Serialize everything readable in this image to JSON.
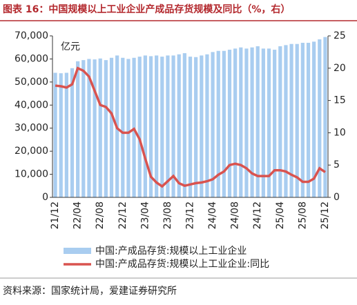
{
  "chart_data": {
    "type": "bar-line",
    "title": "图表 16：中国规模以上工业企业产成品存货规模及同比（%，右）",
    "unit_label": "亿元",
    "source": "资料来源：国家统计局，爱建证券研究所",
    "categories": [
      "21/12",
      null,
      null,
      null,
      "22/04",
      null,
      null,
      null,
      "22/08",
      null,
      null,
      null,
      "22/12",
      null,
      null,
      null,
      "23/04",
      null,
      null,
      null,
      "23/08",
      null,
      null,
      null,
      "23/12",
      null,
      null,
      null,
      "24/04",
      null,
      null,
      null,
      "24/08",
      null,
      null,
      null,
      "24/12",
      null,
      null,
      null,
      "25/04",
      null,
      null,
      null,
      "25/08",
      null,
      null,
      null,
      "25/12"
    ],
    "series": [
      {
        "name": "中国:产成品存货:规模以上工业企业",
        "color": "#a9cdf0",
        "values": [
          54000,
          53800,
          54000,
          56000,
          59000,
          59500,
          60000,
          59800,
          60200,
          59500,
          60500,
          61500,
          60500,
          60000,
          60500,
          61000,
          61500,
          61200,
          61500,
          61000,
          61500,
          61500,
          62000,
          62500,
          61000,
          60800,
          61500,
          62000,
          63000,
          63500,
          63500,
          64000,
          64500,
          65000,
          64500,
          65000,
          65500,
          64500,
          64500,
          64000,
          65500,
          66000,
          66500,
          66500,
          67000,
          67000,
          67500,
          68500,
          69500
        ]
      },
      {
        "name": "中国:产成品存货:规模以上工业企业:同比",
        "color": "#d9534f",
        "axis": "y2",
        "values": [
          17.3,
          17.2,
          17.0,
          17.5,
          20.0,
          19.6,
          18.7,
          16.5,
          14.3,
          14.0,
          13.0,
          10.7,
          10.0,
          10.0,
          10.6,
          9.0,
          6.0,
          3.2,
          2.3,
          1.7,
          2.5,
          3.3,
          2.2,
          1.8,
          2.0,
          2.2,
          2.3,
          2.5,
          2.8,
          3.5,
          4.0,
          5.0,
          5.2,
          5.0,
          4.5,
          3.7,
          3.3,
          3.3,
          3.3,
          4.2,
          4.2,
          4.0,
          3.5,
          3.1,
          2.4,
          2.4,
          2.9,
          4.5,
          3.9
        ]
      }
    ],
    "ylim": [
      0,
      70000
    ],
    "yticks": [
      0,
      {
        "value": 10000,
        "label": "10,000"
      },
      {
        "value": 20000,
        "label": "20,000"
      },
      {
        "value": 30000,
        "label": "30,000"
      },
      {
        "value": 40000,
        "label": "40,000"
      },
      {
        "value": 50000,
        "label": "50,000"
      },
      {
        "value": 60000,
        "label": "60,000"
      },
      {
        "value": 70000,
        "label": "70,000"
      }
    ],
    "y2lim": [
      0,
      25
    ],
    "y2ticks": [
      0,
      5,
      10,
      15,
      20,
      25
    ]
  }
}
